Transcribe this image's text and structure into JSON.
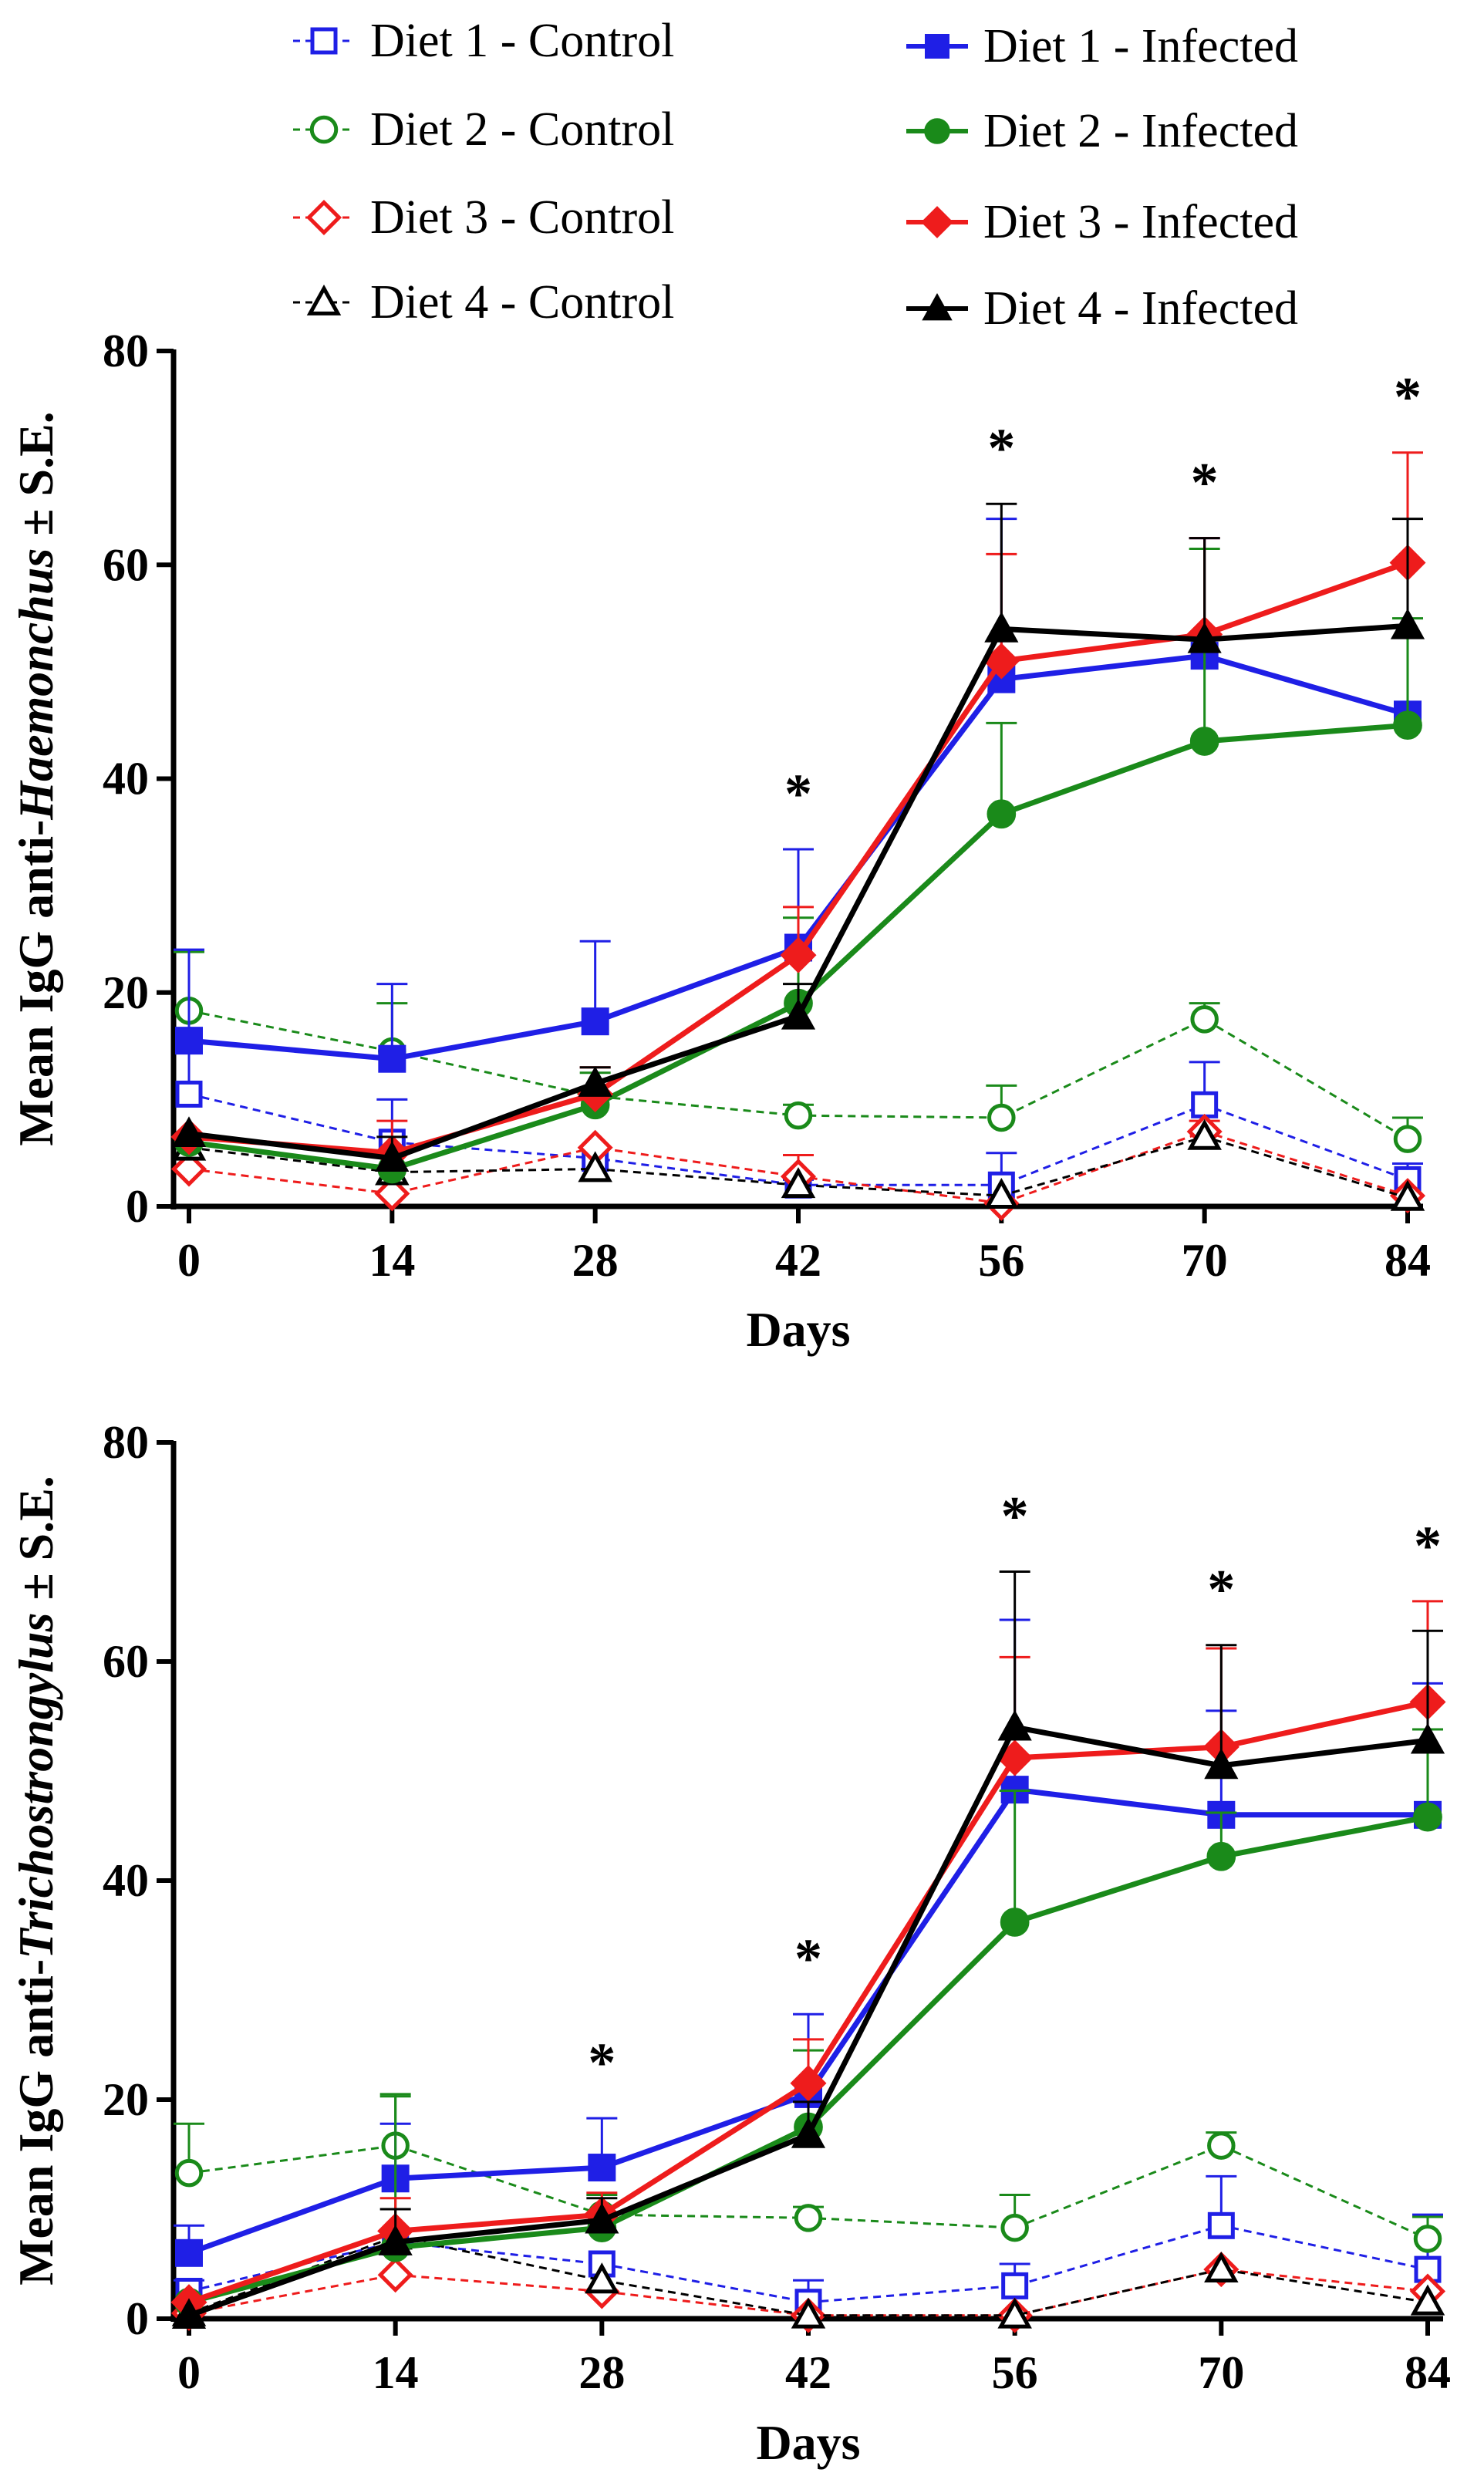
{
  "legend": {
    "entries": [
      {
        "label": "Diet 1 - Control",
        "color": "#1f1fe6",
        "marker": "square",
        "filled": false,
        "dashed": true
      },
      {
        "label": "Diet 1 - Infected",
        "color": "#1f1fe6",
        "marker": "square",
        "filled": true,
        "dashed": false
      },
      {
        "label": "Diet 2 - Control",
        "color": "#1a8a1a",
        "marker": "circle",
        "filled": false,
        "dashed": true
      },
      {
        "label": "Diet 2 - Infected",
        "color": "#1a8a1a",
        "marker": "circle",
        "filled": true,
        "dashed": false
      },
      {
        "label": "Diet 3 - Control",
        "color": "#ee1c1c",
        "marker": "diamond",
        "filled": false,
        "dashed": true
      },
      {
        "label": "Diet 3 - Infected",
        "color": "#ee1c1c",
        "marker": "diamond",
        "filled": true,
        "dashed": false
      },
      {
        "label": "Diet 4 - Control",
        "color": "#000000",
        "marker": "triangle",
        "filled": false,
        "dashed": true
      },
      {
        "label": "Diet 4 - Infected",
        "color": "#000000",
        "marker": "triangle",
        "filled": true,
        "dashed": false
      }
    ]
  },
  "chart_data": [
    {
      "type": "line",
      "ylabel_prefix": "Mean IgG anti-",
      "ylabel_italic": "Haemonchus",
      "ylabel_suffix": " ± S.E.",
      "xlabel": "Days",
      "x": [
        0,
        14,
        28,
        42,
        56,
        70,
        84
      ],
      "x_tick_labels": [
        "0",
        "14",
        "28",
        "42",
        "56",
        "70",
        "84"
      ],
      "ylim": [
        0,
        80
      ],
      "y_ticks": [
        0,
        20,
        40,
        60,
        80
      ],
      "y_tick_labels": [
        "0",
        "20",
        "40",
        "60",
        "80"
      ],
      "significance_marker": "*",
      "significant_days": [
        42,
        56,
        70,
        84
      ],
      "series": [
        {
          "name": "Diet 1 - Control",
          "values": [
            10.5,
            6.0,
            4.5,
            2.0,
            2.0,
            9.5,
            2.5
          ],
          "se": [
            13.5,
            4.0,
            0,
            0.5,
            3.0,
            4.0,
            1.5
          ]
        },
        {
          "name": "Diet 2 - Control",
          "values": [
            18.3,
            14.5,
            10.3,
            8.5,
            8.3,
            17.5,
            6.3
          ],
          "se": [
            5.5,
            4.5,
            0,
            1.0,
            3.0,
            1.5,
            2.0
          ]
        },
        {
          "name": "Diet 3 - Control",
          "values": [
            3.5,
            1.2,
            5.5,
            2.8,
            0.3,
            7.0,
            1.0
          ],
          "se": [
            0,
            0,
            0,
            2.0,
            0,
            1.0,
            0
          ]
        },
        {
          "name": "Diet 4 - Control",
          "values": [
            5.5,
            3.2,
            3.5,
            2.0,
            1.0,
            6.5,
            0.8
          ],
          "se": [
            0,
            0,
            0,
            0,
            0,
            0,
            0
          ]
        },
        {
          "name": "Diet 1 - Infected",
          "values": [
            15.5,
            13.8,
            17.3,
            24.2,
            49.3,
            51.5,
            46.0
          ],
          "se": [
            8.5,
            7.0,
            7.5,
            9.2,
            15.0,
            11.0,
            0
          ]
        },
        {
          "name": "Diet 2 - Infected",
          "values": [
            6.0,
            3.5,
            9.5,
            19.0,
            36.7,
            43.5,
            45.0
          ],
          "se": [
            0,
            0,
            3.0,
            8.0,
            8.5,
            18.0,
            10.0
          ]
        },
        {
          "name": "Diet 3 - Infected",
          "values": [
            6.5,
            5.0,
            10.5,
            23.5,
            51.0,
            53.5,
            60.2
          ],
          "se": [
            0,
            3.0,
            2.5,
            4.5,
            10.0,
            9.0,
            10.3
          ]
        },
        {
          "name": "Diet 4 - Infected",
          "values": [
            6.8,
            4.5,
            11.5,
            17.8,
            54.0,
            53.0,
            54.3
          ],
          "se": [
            0,
            2.0,
            1.5,
            3.0,
            11.7,
            9.5,
            10.0
          ]
        }
      ]
    },
    {
      "type": "line",
      "ylabel_prefix": "Mean IgG anti-",
      "ylabel_italic": "Trichostrongylus",
      "ylabel_suffix": " ± S.E.",
      "xlabel": "Days",
      "x": [
        0,
        14,
        28,
        42,
        56,
        70,
        84
      ],
      "x_tick_labels": [
        "0",
        "14",
        "28",
        "42",
        "56",
        "70",
        "84"
      ],
      "ylim": [
        0,
        80
      ],
      "y_ticks": [
        0,
        20,
        40,
        60,
        80
      ],
      "y_tick_labels": [
        "0",
        "20",
        "40",
        "60",
        "80"
      ],
      "significance_marker": "*",
      "significant_days": [
        28,
        42,
        56,
        70,
        84
      ],
      "series": [
        {
          "name": "Diet 1 - Control",
          "values": [
            2.5,
            7.0,
            5.0,
            1.5,
            3.0,
            8.5,
            4.5
          ],
          "se": [
            1.0,
            0,
            0,
            2.0,
            2.0,
            4.5,
            5.0
          ]
        },
        {
          "name": "Diet 2 - Control",
          "values": [
            13.3,
            15.8,
            9.5,
            9.2,
            8.3,
            15.8,
            7.3
          ],
          "se": [
            4.5,
            4.5,
            0,
            1.0,
            3.0,
            1.2,
            2.0
          ]
        },
        {
          "name": "Diet 3 - Control",
          "values": [
            0.5,
            4.0,
            2.5,
            0.3,
            0.3,
            4.5,
            2.5
          ],
          "se": [
            0,
            0,
            0,
            0,
            0,
            0,
            0
          ]
        },
        {
          "name": "Diet 4 - Control",
          "values": [
            0.5,
            7.5,
            3.5,
            0.3,
            0.3,
            4.5,
            1.5
          ],
          "se": [
            0,
            0,
            0,
            0,
            0,
            0,
            0
          ]
        },
        {
          "name": "Diet 1 - Infected",
          "values": [
            6.0,
            12.8,
            13.8,
            20.5,
            48.3,
            46.0,
            46.0
          ],
          "se": [
            2.5,
            5.0,
            4.5,
            7.3,
            15.5,
            9.5,
            12.0
          ]
        },
        {
          "name": "Diet 2 - Infected",
          "values": [
            1.5,
            6.5,
            8.3,
            17.5,
            36.2,
            42.2,
            45.8
          ],
          "se": [
            0,
            14.0,
            3.0,
            7.0,
            12.0,
            4.0,
            8.0
          ]
        },
        {
          "name": "Diet 3 - Infected",
          "values": [
            1.5,
            8.0,
            9.5,
            21.5,
            51.2,
            52.2,
            56.3
          ],
          "se": [
            0,
            3.0,
            2.0,
            4.0,
            9.2,
            9.0,
            9.2
          ]
        },
        {
          "name": "Diet 4 - Infected",
          "values": [
            0.3,
            7.0,
            9.0,
            16.8,
            54.0,
            50.5,
            52.8
          ],
          "se": [
            0,
            3.0,
            2.0,
            3.0,
            14.2,
            11.0,
            10.0
          ]
        }
      ]
    }
  ]
}
